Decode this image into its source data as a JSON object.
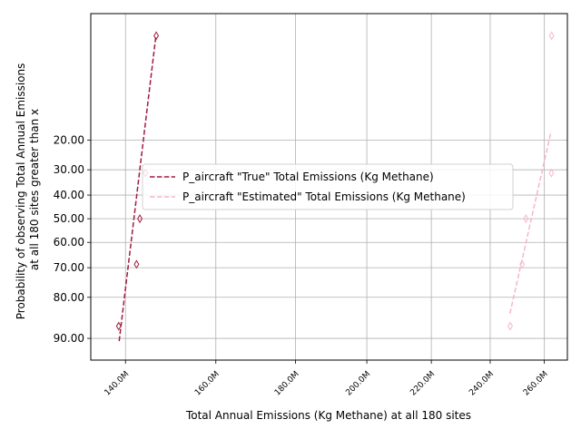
{
  "chart_data": {
    "type": "scatter",
    "xlabel": "Total Annual Emissions (Kg Methane) at all 180 sites",
    "ylabel_lines": [
      "Probability of observing Total Annual Emissions",
      "at all 180 sites greater than x"
    ],
    "x_scale": "log",
    "y_scale": "normal-probability",
    "xlim": [
      133000000,
      269000000
    ],
    "ylim": [
      93.5,
      1.4
    ],
    "x_ticks": [
      {
        "value": 140000000,
        "label": "140.0M"
      },
      {
        "value": 160000000,
        "label": "160.0M"
      },
      {
        "value": 180000000,
        "label": "180.0M"
      },
      {
        "value": 200000000,
        "label": "200.0M"
      },
      {
        "value": 220000000,
        "label": "220.0M"
      },
      {
        "value": 240000000,
        "label": "240.0M"
      },
      {
        "value": 260000000,
        "label": "260.0M"
      }
    ],
    "y_ticks": [
      {
        "value": 20,
        "label": "20.00"
      },
      {
        "value": 30,
        "label": "30.00"
      },
      {
        "value": 40,
        "label": "40.00"
      },
      {
        "value": 50,
        "label": "50.00"
      },
      {
        "value": 60,
        "label": "60.00"
      },
      {
        "value": 70,
        "label": "70.00"
      },
      {
        "value": 80,
        "label": "80.00"
      },
      {
        "value": 90,
        "label": "90.00"
      }
    ],
    "grid": true,
    "legend_position": "center-right",
    "series": [
      {
        "name": "P_aircraft \"True\" Total Emissions (Kg Methane)",
        "color": "#a31a3f",
        "points": [
          {
            "x": 138600000,
            "y": 87.5
          },
          {
            "x": 142300000,
            "y": 68.7
          },
          {
            "x": 143000000,
            "y": 50.0
          },
          {
            "x": 144200000,
            "y": 31.2
          },
          {
            "x": 146500000,
            "y": 2.5
          }
        ],
        "fit_line": [
          {
            "x": 138700000,
            "y": 90.5
          },
          {
            "x": 146400000,
            "y": 2.6
          }
        ]
      },
      {
        "name": "P_aircraft \"Estimated\" Total Emissions (Kg Methane)",
        "color": "#f7b6c8",
        "points": [
          {
            "x": 247200000,
            "y": 87.5
          },
          {
            "x": 251600000,
            "y": 68.7
          },
          {
            "x": 253000000,
            "y": 50.0
          },
          {
            "x": 262700000,
            "y": 31.2
          },
          {
            "x": 262800000,
            "y": 2.5
          }
        ],
        "fit_line": [
          {
            "x": 247100000,
            "y": 84.5
          },
          {
            "x": 262600000,
            "y": 17.5
          }
        ]
      }
    ]
  }
}
